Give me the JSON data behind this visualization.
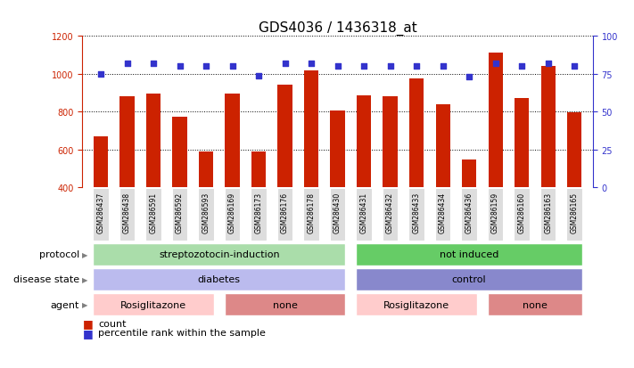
{
  "title": "GDS4036 / 1436318_at",
  "samples": [
    "GSM286437",
    "GSM286438",
    "GSM286591",
    "GSM286592",
    "GSM286593",
    "GSM286169",
    "GSM286173",
    "GSM286176",
    "GSM286178",
    "GSM286430",
    "GSM286431",
    "GSM286432",
    "GSM286433",
    "GSM286434",
    "GSM286436",
    "GSM286159",
    "GSM286160",
    "GSM286163",
    "GSM286165"
  ],
  "counts": [
    670,
    880,
    895,
    775,
    590,
    895,
    590,
    945,
    1020,
    808,
    885,
    880,
    975,
    840,
    545,
    1110,
    870,
    1040,
    795
  ],
  "percentiles": [
    75,
    82,
    82,
    80,
    80,
    80,
    74,
    82,
    82,
    80,
    80,
    80,
    80,
    80,
    73,
    82,
    80,
    82,
    80
  ],
  "ylim_left": [
    400,
    1200
  ],
  "ylim_right": [
    0,
    100
  ],
  "yticks_left": [
    400,
    600,
    800,
    1000,
    1200
  ],
  "yticks_right": [
    0,
    25,
    50,
    75,
    100
  ],
  "bar_color": "#cc2200",
  "dot_color": "#3333cc",
  "grid_color": "#000000",
  "protocol_groups": [
    {
      "label": "streptozotocin-induction",
      "start": 0,
      "end": 10,
      "color": "#aaddaa"
    },
    {
      "label": "not induced",
      "start": 10,
      "end": 19,
      "color": "#66cc66"
    }
  ],
  "disease_groups": [
    {
      "label": "diabetes",
      "start": 0,
      "end": 10,
      "color": "#bbbbee"
    },
    {
      "label": "control",
      "start": 10,
      "end": 19,
      "color": "#8888cc"
    }
  ],
  "agent_groups": [
    {
      "label": "Rosiglitazone",
      "start": 0,
      "end": 5,
      "color": "#ffcccc"
    },
    {
      "label": "none",
      "start": 5,
      "end": 10,
      "color": "#dd8888"
    },
    {
      "label": "Rosiglitazone",
      "start": 10,
      "end": 15,
      "color": "#ffcccc"
    },
    {
      "label": "none",
      "start": 15,
      "end": 19,
      "color": "#dd8888"
    }
  ],
  "legend_count_color": "#cc2200",
  "legend_dot_color": "#3333cc",
  "row_labels": [
    "protocol",
    "disease state",
    "agent"
  ],
  "title_fontsize": 11,
  "tick_fontsize": 7,
  "label_fontsize": 8,
  "row_fontsize": 8,
  "bar_width": 0.55
}
